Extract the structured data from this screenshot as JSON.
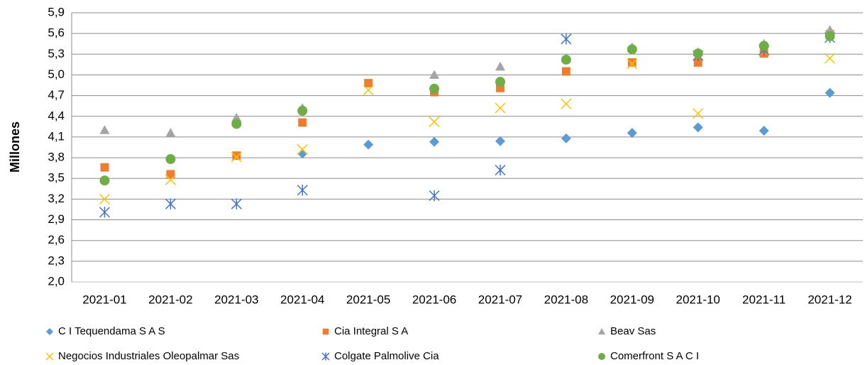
{
  "chart_data": {
    "type": "scatter",
    "ylabel": "Millones",
    "categories": [
      "2021-01",
      "2021-02",
      "2021-03",
      "2021-04",
      "2021-05",
      "2021-06",
      "2021-07",
      "2021-08",
      "2021-09",
      "2021-10",
      "2021-11",
      "2021-12"
    ],
    "ylim": [
      2.0,
      5.9
    ],
    "yticks": [
      {
        "value": 2.0,
        "label": "2,0"
      },
      {
        "value": 2.3,
        "label": "2,3"
      },
      {
        "value": 2.6,
        "label": "2,6"
      },
      {
        "value": 2.9,
        "label": "2,9"
      },
      {
        "value": 3.2,
        "label": "3,2"
      },
      {
        "value": 3.5,
        "label": "3,5"
      },
      {
        "value": 3.8,
        "label": "3,8"
      },
      {
        "value": 4.1,
        "label": "4,1"
      },
      {
        "value": 4.4,
        "label": "4,4"
      },
      {
        "value": 4.7,
        "label": "4,7"
      },
      {
        "value": 5.0,
        "label": "5,0"
      },
      {
        "value": 5.3,
        "label": "5,3"
      },
      {
        "value": 5.6,
        "label": "5,6"
      },
      {
        "value": 5.9,
        "label": "5,9"
      }
    ],
    "grid": true,
    "legend": "bottom",
    "series": [
      {
        "name": "C I Tequendama S A S",
        "color": "#5b9bd5",
        "marker": "diamond",
        "values": [
          null,
          null,
          null,
          3.86,
          3.99,
          4.03,
          4.04,
          4.08,
          4.16,
          4.24,
          4.19,
          4.74
        ]
      },
      {
        "name": "Cia Integral S A",
        "color": "#ed7d31",
        "marker": "square",
        "values": [
          3.66,
          3.56,
          3.83,
          4.31,
          4.88,
          4.75,
          4.81,
          5.05,
          5.18,
          5.18,
          5.31,
          5.59
        ]
      },
      {
        "name": "Beav Sas",
        "color": "#a5a5a5",
        "marker": "triangle",
        "values": [
          4.2,
          4.16,
          4.38,
          4.52,
          null,
          5.0,
          5.12,
          5.24,
          5.4,
          5.33,
          5.45,
          5.65
        ]
      },
      {
        "name": "Negocios Industriales Oleopalmar Sas",
        "color": "#ffc000",
        "marker": "x",
        "values": [
          3.2,
          3.48,
          3.81,
          3.92,
          4.78,
          4.32,
          4.52,
          4.58,
          5.16,
          4.44,
          5.35,
          5.24
        ]
      },
      {
        "name": "Colgate Palmolive Cia",
        "color": "#4472c4",
        "marker": "star",
        "values": [
          3.01,
          3.13,
          3.13,
          3.33,
          null,
          3.25,
          3.62,
          5.52,
          null,
          5.28,
          5.36,
          5.54
        ]
      },
      {
        "name": "Comerfront S A C I",
        "color": "#70ad47",
        "marker": "circle",
        "values": [
          3.47,
          3.78,
          4.29,
          4.48,
          null,
          4.8,
          4.9,
          5.22,
          5.37,
          5.31,
          5.42,
          5.56
        ]
      }
    ]
  }
}
